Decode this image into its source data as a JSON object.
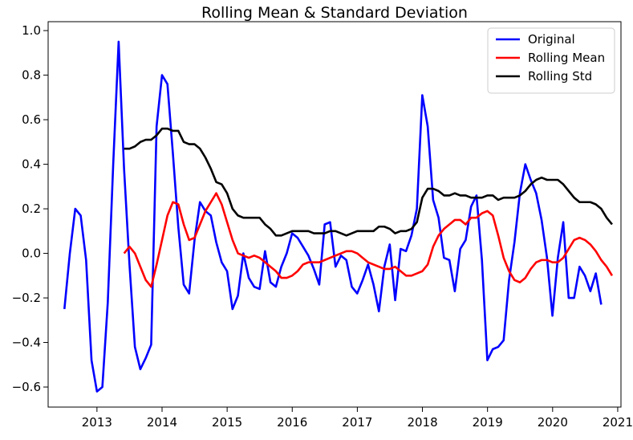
{
  "chart_data": {
    "type": "line",
    "title": "Rolling Mean & Standard Deviation",
    "xlabel": "",
    "ylabel": "",
    "xlim": [
      2012.25,
      2021.05
    ],
    "ylim": [
      -0.69,
      1.04
    ],
    "x_ticks": [
      2013,
      2014,
      2015,
      2016,
      2017,
      2018,
      2019,
      2020,
      2021
    ],
    "x_tick_labels": [
      "2013",
      "2014",
      "2015",
      "2016",
      "2017",
      "2018",
      "2019",
      "2020",
      "2021"
    ],
    "y_ticks": [
      -0.6,
      -0.4,
      -0.2,
      0.0,
      0.2,
      0.4,
      0.6,
      0.8,
      1.0
    ],
    "y_tick_labels": [
      "−0.6",
      "−0.4",
      "−0.2",
      "0.0",
      "0.2",
      "0.4",
      "0.6",
      "0.8",
      "1.0"
    ],
    "grid": false,
    "legend_position": "top-right",
    "colors": {
      "original": "#0000ff",
      "rolling_mean": "#ff0000",
      "rolling_std": "#000000"
    },
    "x_range": {
      "start": 2012.5,
      "end": 2020.75,
      "step": 0.0833
    },
    "series": [
      {
        "name": "Original",
        "color": "#0000ff",
        "start": 2012.5,
        "values": [
          -0.25,
          0.0,
          0.2,
          0.17,
          -0.03,
          -0.48,
          -0.62,
          -0.6,
          -0.22,
          0.4,
          0.95,
          0.38,
          -0.05,
          -0.42,
          -0.52,
          -0.47,
          -0.41,
          0.57,
          0.8,
          0.76,
          0.45,
          0.12,
          -0.14,
          -0.18,
          0.06,
          0.23,
          0.19,
          0.17,
          0.05,
          -0.04,
          -0.08,
          -0.25,
          -0.19,
          0.0,
          -0.11,
          -0.15,
          -0.16,
          0.01,
          -0.13,
          -0.15,
          -0.06,
          0.0,
          0.09,
          0.07,
          0.03,
          -0.01,
          -0.07,
          -0.14,
          0.13,
          0.14,
          -0.06,
          -0.01,
          -0.03,
          -0.15,
          -0.18,
          -0.12,
          -0.05,
          -0.14,
          -0.26,
          -0.06,
          0.04,
          -0.21,
          0.02,
          0.01,
          0.08,
          0.2,
          0.71,
          0.57,
          0.24,
          0.16,
          -0.02,
          -0.03,
          -0.17,
          0.02,
          0.06,
          0.21,
          0.26,
          -0.03,
          -0.48,
          -0.43,
          -0.42,
          -0.39,
          -0.12,
          0.05,
          0.27,
          0.4,
          0.33,
          0.27,
          0.15,
          -0.02,
          -0.28,
          -0.02,
          0.14,
          -0.2,
          -0.2,
          -0.06,
          -0.1,
          -0.17,
          -0.09,
          -0.23
        ]
      },
      {
        "name": "Rolling Mean",
        "color": "#ff0000",
        "start": 2013.4167,
        "values": [
          0.0,
          0.03,
          0.0,
          -0.06,
          -0.12,
          -0.15,
          -0.05,
          0.06,
          0.17,
          0.23,
          0.22,
          0.13,
          0.06,
          0.07,
          0.13,
          0.19,
          0.23,
          0.27,
          0.22,
          0.14,
          0.06,
          0.0,
          -0.01,
          -0.02,
          -0.01,
          -0.02,
          -0.04,
          -0.06,
          -0.08,
          -0.11,
          -0.11,
          -0.1,
          -0.08,
          -0.05,
          -0.04,
          -0.04,
          -0.04,
          -0.03,
          -0.02,
          -0.01,
          0.0,
          0.01,
          0.01,
          0.0,
          -0.02,
          -0.04,
          -0.05,
          -0.06,
          -0.07,
          -0.07,
          -0.06,
          -0.08,
          -0.1,
          -0.1,
          -0.09,
          -0.08,
          -0.05,
          0.03,
          0.08,
          0.11,
          0.13,
          0.15,
          0.15,
          0.13,
          0.16,
          0.16,
          0.18,
          0.19,
          0.17,
          0.08,
          -0.02,
          -0.08,
          -0.12,
          -0.13,
          -0.11,
          -0.07,
          -0.04,
          -0.03,
          -0.03,
          -0.04,
          -0.04,
          -0.02,
          0.02,
          0.06,
          0.07,
          0.06,
          0.04,
          0.01,
          -0.03,
          -0.06,
          -0.1
        ]
      },
      {
        "name": "Rolling Std",
        "color": "#000000",
        "start": 2013.4167,
        "values": [
          0.47,
          0.47,
          0.48,
          0.5,
          0.51,
          0.51,
          0.53,
          0.56,
          0.56,
          0.55,
          0.55,
          0.5,
          0.49,
          0.49,
          0.47,
          0.43,
          0.38,
          0.32,
          0.31,
          0.27,
          0.2,
          0.17,
          0.16,
          0.16,
          0.16,
          0.16,
          0.13,
          0.11,
          0.08,
          0.08,
          0.09,
          0.1,
          0.1,
          0.1,
          0.1,
          0.09,
          0.09,
          0.09,
          0.1,
          0.1,
          0.09,
          0.08,
          0.09,
          0.1,
          0.1,
          0.1,
          0.1,
          0.12,
          0.12,
          0.11,
          0.09,
          0.1,
          0.1,
          0.11,
          0.14,
          0.25,
          0.29,
          0.29,
          0.28,
          0.26,
          0.26,
          0.27,
          0.26,
          0.26,
          0.25,
          0.25,
          0.25,
          0.26,
          0.26,
          0.24,
          0.25,
          0.25,
          0.25,
          0.26,
          0.28,
          0.31,
          0.33,
          0.34,
          0.33,
          0.33,
          0.33,
          0.31,
          0.28,
          0.25,
          0.23,
          0.23,
          0.23,
          0.22,
          0.2,
          0.16,
          0.13
        ]
      }
    ]
  }
}
